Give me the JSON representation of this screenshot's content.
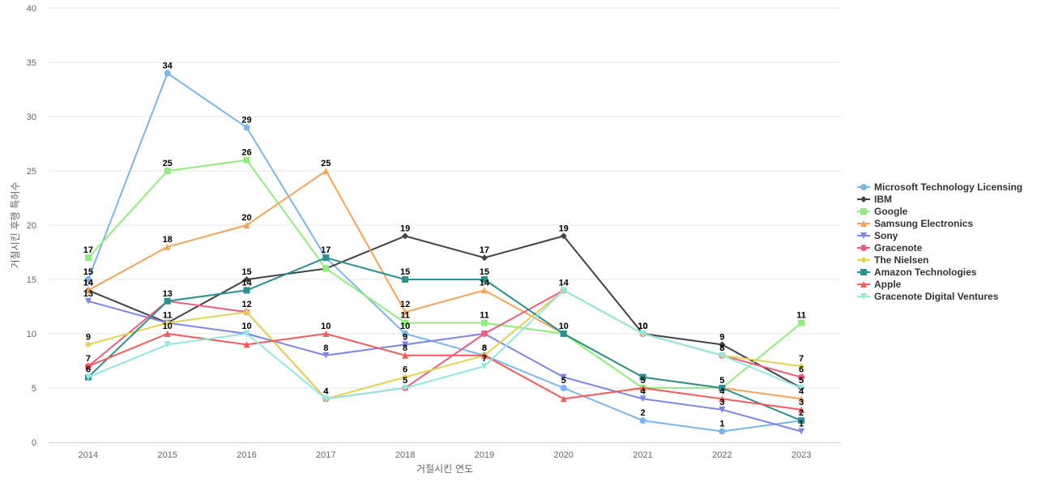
{
  "chart_data": {
    "type": "line",
    "title": "",
    "xlabel": "거절시킨 연도",
    "ylabel": "거절시킨 후행 특허수",
    "ylim": [
      0,
      40
    ],
    "yticks": [
      0,
      5,
      10,
      15,
      20,
      25,
      30,
      35,
      40
    ],
    "grid": true,
    "legend_position": "right",
    "categories": [
      "2014",
      "2015",
      "2016",
      "2017",
      "2018",
      "2019",
      "2020",
      "2021",
      "2022",
      "2023"
    ],
    "series": [
      {
        "name": "Microsoft Technology Licensing",
        "color": "#7cb5ec",
        "marker": "circle",
        "values": [
          15,
          34,
          29,
          17,
          10,
          8,
          5,
          2,
          1,
          2
        ]
      },
      {
        "name": "IBM",
        "color": "#434348",
        "marker": "diamond",
        "values": [
          14,
          11,
          15,
          16,
          19,
          17,
          19,
          10,
          9,
          5
        ]
      },
      {
        "name": "Google",
        "color": "#90ed7d",
        "marker": "square",
        "values": [
          17,
          25,
          26,
          16,
          11,
          11,
          10,
          5,
          5,
          11
        ]
      },
      {
        "name": "Samsung Electronics",
        "color": "#f7a35c",
        "marker": "triangle",
        "values": [
          14,
          18,
          20,
          25,
          12,
          14,
          10,
          6,
          5,
          4
        ]
      },
      {
        "name": "Sony",
        "color": "#8085e9",
        "marker": "triangle-down",
        "values": [
          13,
          11,
          10,
          8,
          9,
          10,
          6,
          4,
          3,
          1
        ]
      },
      {
        "name": "Gracenote",
        "color": "#f15c80",
        "marker": "circle",
        "values": [
          7,
          13,
          12,
          4,
          5,
          10,
          14,
          10,
          8,
          6
        ]
      },
      {
        "name": "The Nielsen",
        "color": "#e4d354",
        "marker": "diamond",
        "values": [
          9,
          11,
          12,
          4,
          6,
          8,
          14,
          10,
          8,
          7
        ]
      },
      {
        "name": "Amazon Technologies",
        "color": "#2b908f",
        "marker": "square",
        "values": [
          6,
          13,
          14,
          17,
          15,
          15,
          10,
          6,
          5,
          2
        ]
      },
      {
        "name": "Apple",
        "color": "#f45b5b",
        "marker": "triangle",
        "values": [
          7,
          10,
          9,
          10,
          8,
          8,
          4,
          5,
          4,
          3
        ]
      },
      {
        "name": "Gracenote Digital Ventures",
        "color": "#91e8e1",
        "marker": "triangle-down",
        "values": [
          6,
          9,
          10,
          4,
          5,
          7,
          14,
          10,
          8,
          5
        ]
      }
    ],
    "data_labels": [
      {
        "series": "Microsoft Technology Licensing",
        "points": [
          0,
          1,
          2,
          4,
          5,
          6,
          7,
          8
        ]
      },
      {
        "series": "IBM",
        "points": [
          0,
          1,
          2,
          4,
          5,
          6,
          7,
          8
        ]
      },
      {
        "series": "Google",
        "points": [
          0,
          1,
          2,
          4,
          5,
          9
        ]
      },
      {
        "series": "Samsung Electronics",
        "points": [
          0,
          1,
          2,
          3,
          4,
          5,
          9
        ]
      },
      {
        "series": "Sony",
        "points": [
          0,
          3,
          4,
          7,
          8,
          9
        ]
      },
      {
        "series": "Gracenote",
        "points": [
          0,
          2,
          7,
          8,
          9
        ]
      },
      {
        "series": "The Nielsen",
        "points": [
          0,
          3,
          4,
          5,
          6,
          9
        ]
      },
      {
        "series": "Amazon Technologies",
        "points": [
          0,
          1,
          2,
          3,
          4,
          5,
          6,
          8,
          9
        ]
      },
      {
        "series": "Apple",
        "points": [
          1,
          3,
          4,
          7,
          8,
          9
        ]
      },
      {
        "series": "Gracenote Digital Ventures",
        "points": [
          2,
          3,
          4,
          5,
          7,
          8,
          9
        ]
      }
    ]
  }
}
